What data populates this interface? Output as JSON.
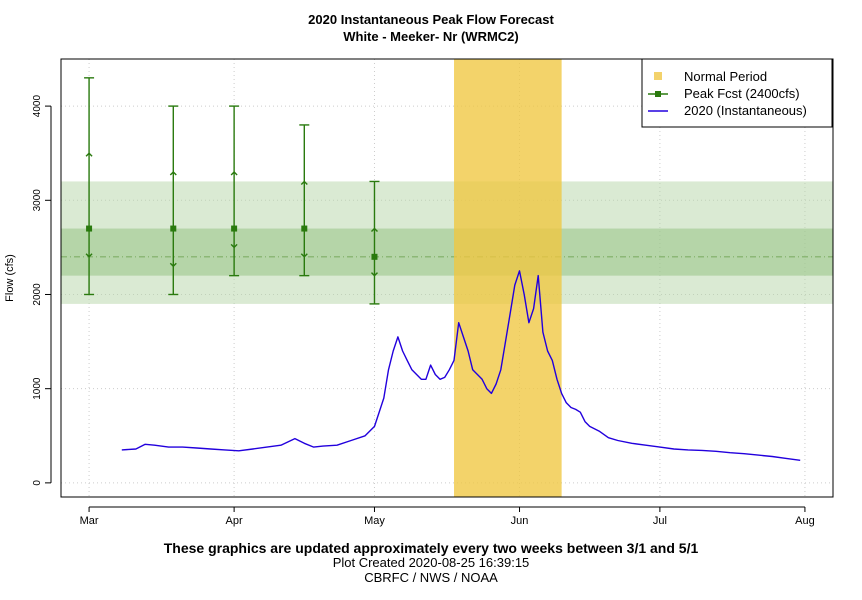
{
  "footer": {
    "line1": "These graphics are updated approximately every two weeks between 3/1 and 5/1",
    "line2": "Plot Created 2020-08-25 16:39:15",
    "line3": "CBRFC / NWS / NOAA"
  },
  "chart_data": {
    "type": "line",
    "title": "2020 Instantaneous Peak Flow Forecast",
    "subtitle": "White - Meeker- Nr (WRMC2)",
    "xlabel": "",
    "ylabel": "Flow (cfs)",
    "x_tick_labels": [
      "Mar",
      "Apr",
      "May",
      "Jun",
      "Jul",
      "Aug"
    ],
    "x_tick_dates": [
      "2020-03-01",
      "2020-04-01",
      "2020-05-01",
      "2020-06-01",
      "2020-07-01",
      "2020-08-01"
    ],
    "xlim": [
      "2020-02-24",
      "2020-08-07"
    ],
    "y_ticks": [
      0,
      1000,
      2000,
      3000,
      4000
    ],
    "ylim": [
      -150,
      4500
    ],
    "grid": true,
    "legend_position": "top-right",
    "legend": [
      {
        "label": "Normal Period",
        "color": "#f3d26b"
      },
      {
        "label": "Peak Fcst (2400cfs)",
        "color": "#2a7a0e"
      },
      {
        "label": "2020  (Instantaneous)",
        "color": "#2200dd"
      }
    ],
    "normal_period": {
      "start": "2020-05-18",
      "end": "2020-06-10",
      "color": "#f0c640"
    },
    "forecast_value": 2400,
    "bands": [
      {
        "low": 1900,
        "high": 3200,
        "color": "#b6d6a8"
      },
      {
        "low": 2200,
        "high": 2700,
        "color": "#8fbf7e"
      }
    ],
    "peak_forecasts": [
      {
        "date": "2020-03-01",
        "value": 2700,
        "min": 2000,
        "p10": 2400,
        "p90": 3500,
        "max": 4300
      },
      {
        "date": "2020-03-19",
        "value": 2700,
        "min": 2000,
        "p10": 2300,
        "p90": 3300,
        "max": 4000
      },
      {
        "date": "2020-04-01",
        "value": 2700,
        "min": 2200,
        "p10": 2500,
        "p90": 3300,
        "max": 4000
      },
      {
        "date": "2020-04-16",
        "value": 2700,
        "min": 2200,
        "p10": 2400,
        "p90": 3200,
        "max": 3800
      },
      {
        "date": "2020-05-01",
        "value": 2400,
        "min": 1900,
        "p10": 2200,
        "p90": 2700,
        "max": 3200
      }
    ],
    "series": [
      {
        "name": "2020  (Instantaneous)",
        "color": "#2200dd",
        "x": [
          "2020-03-08",
          "2020-03-11",
          "2020-03-13",
          "2020-03-15",
          "2020-03-18",
          "2020-03-21",
          "2020-03-24",
          "2020-03-27",
          "2020-03-30",
          "2020-04-02",
          "2020-04-05",
          "2020-04-08",
          "2020-04-11",
          "2020-04-14",
          "2020-04-16",
          "2020-04-18",
          "2020-04-20",
          "2020-04-23",
          "2020-04-26",
          "2020-04-29",
          "2020-05-01",
          "2020-05-03",
          "2020-05-04",
          "2020-05-05",
          "2020-05-06",
          "2020-05-07",
          "2020-05-08",
          "2020-05-09",
          "2020-05-10",
          "2020-05-11",
          "2020-05-12",
          "2020-05-13",
          "2020-05-14",
          "2020-05-15",
          "2020-05-16",
          "2020-05-17",
          "2020-05-18",
          "2020-05-19",
          "2020-05-20",
          "2020-05-21",
          "2020-05-22",
          "2020-05-23",
          "2020-05-24",
          "2020-05-25",
          "2020-05-26",
          "2020-05-27",
          "2020-05-28",
          "2020-05-29",
          "2020-05-30",
          "2020-05-31",
          "2020-06-01",
          "2020-06-02",
          "2020-06-03",
          "2020-06-04",
          "2020-06-05",
          "2020-06-06",
          "2020-06-07",
          "2020-06-08",
          "2020-06-09",
          "2020-06-10",
          "2020-06-11",
          "2020-06-12",
          "2020-06-13",
          "2020-06-14",
          "2020-06-15",
          "2020-06-16",
          "2020-06-18",
          "2020-06-20",
          "2020-06-22",
          "2020-06-25",
          "2020-06-28",
          "2020-07-01",
          "2020-07-04",
          "2020-07-07",
          "2020-07-10",
          "2020-07-13",
          "2020-07-16",
          "2020-07-19",
          "2020-07-22",
          "2020-07-25",
          "2020-07-28",
          "2020-07-31"
        ],
        "values": [
          350,
          360,
          410,
          400,
          380,
          380,
          370,
          360,
          350,
          340,
          360,
          380,
          400,
          470,
          420,
          380,
          390,
          400,
          450,
          500,
          600,
          900,
          1200,
          1400,
          1550,
          1400,
          1300,
          1200,
          1150,
          1100,
          1100,
          1250,
          1150,
          1100,
          1120,
          1200,
          1300,
          1700,
          1550,
          1400,
          1200,
          1150,
          1100,
          1000,
          950,
          1050,
          1200,
          1500,
          1800,
          2100,
          2250,
          2000,
          1700,
          1850,
          2200,
          1600,
          1400,
          1300,
          1100,
          950,
          850,
          800,
          780,
          750,
          650,
          600,
          550,
          480,
          450,
          420,
          400,
          380,
          360,
          350,
          345,
          335,
          320,
          310,
          295,
          280,
          260,
          240
        ]
      }
    ]
  }
}
